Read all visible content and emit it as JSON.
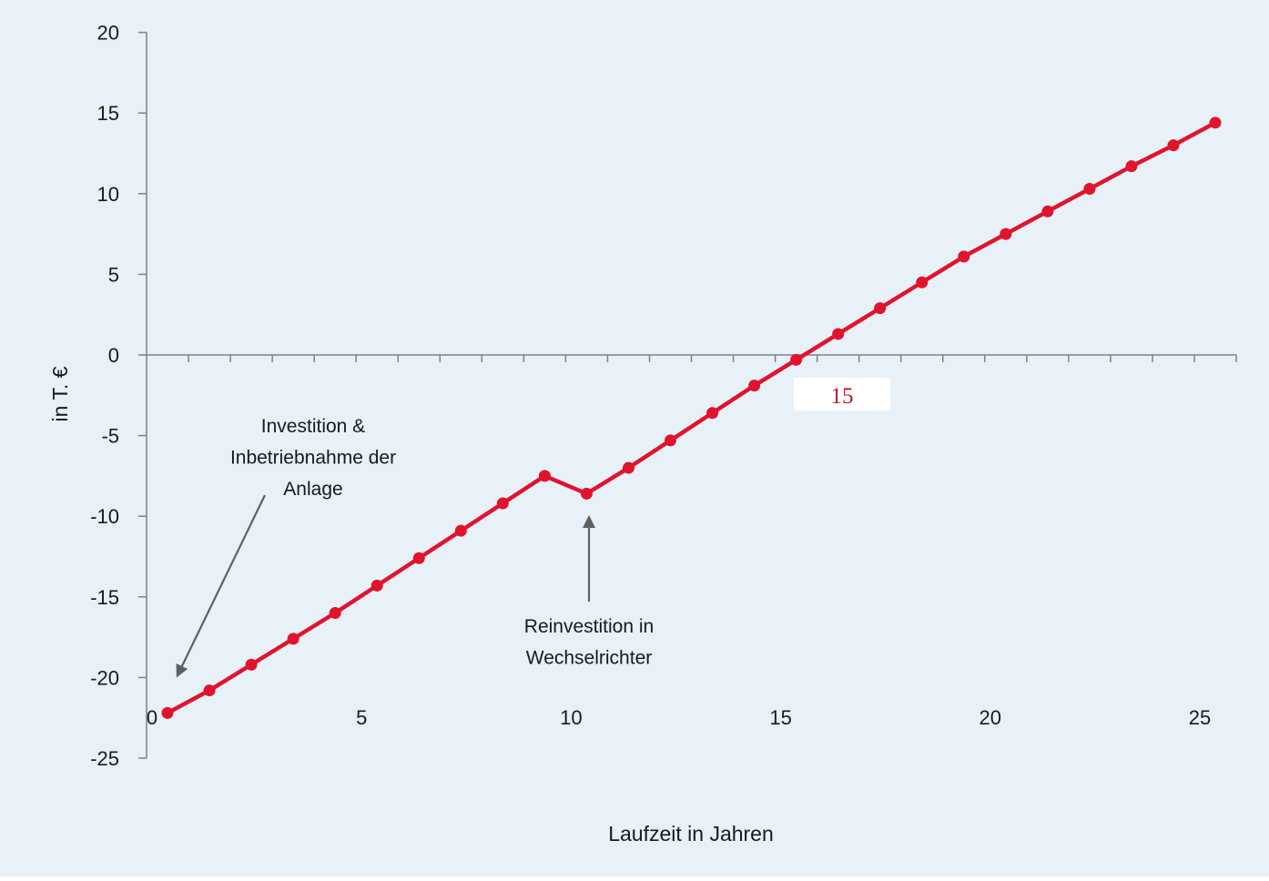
{
  "chart_data": {
    "type": "line",
    "title": "",
    "xlabel": "Laufzeit in Jahren",
    "ylabel": "in T. €",
    "xlim": [
      0,
      26
    ],
    "ylim": [
      -25,
      20
    ],
    "x_ticks": [
      "0",
      "5",
      "10",
      "15",
      "20",
      "25"
    ],
    "y_ticks": [
      "20",
      "15",
      "10",
      "5",
      "0",
      "-5",
      "-10",
      "-15",
      "-20",
      "-25"
    ],
    "grid": false,
    "legend": "none",
    "colors": {
      "background": "#e8f1f7",
      "series": "#e0142c",
      "axis": "#808080",
      "arrow": "#606060",
      "callout_text": "#c8102e",
      "callout_box": "#ffffff"
    },
    "series": [
      {
        "x": [
          0.5,
          1.5,
          2.5,
          3.5,
          4.5,
          5.5,
          6.5,
          7.5,
          8.5,
          9.5,
          10.5,
          11.5,
          12.5,
          13.5,
          14.5,
          15.5,
          16.5,
          17.5,
          18.5,
          19.5,
          20.5,
          21.5,
          22.5,
          23.5,
          24.5,
          25.5
        ],
        "values": [
          -22.2,
          -20.8,
          -19.2,
          -17.6,
          -16.0,
          -14.3,
          -12.6,
          -10.9,
          -9.2,
          -7.5,
          -8.6,
          -7.0,
          -5.3,
          -3.6,
          -1.9,
          -0.3,
          1.3,
          2.9,
          4.5,
          6.1,
          7.5,
          8.9,
          10.3,
          11.7,
          13.0,
          14.4
        ]
      }
    ],
    "annotations": [
      {
        "id": "investition",
        "lines": [
          "Investition &",
          "Inbetriebnahme der",
          "Anlage"
        ]
      },
      {
        "id": "reinvestition",
        "lines": [
          "Reinvestition in",
          "Wechselrichter"
        ]
      }
    ],
    "callout": {
      "text": "15"
    }
  }
}
